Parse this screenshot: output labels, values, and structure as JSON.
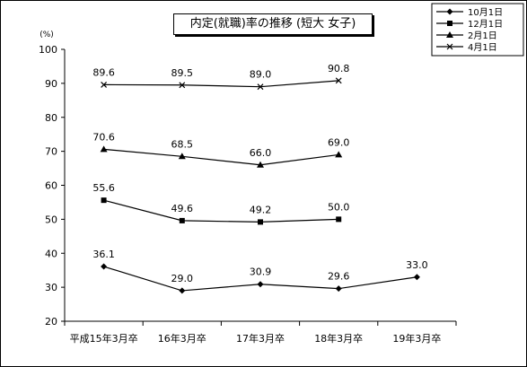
{
  "chart_data": {
    "type": "line",
    "title": "内定(就職)率の推移 (短大 女子)",
    "ylabel": "(%)",
    "ylim": [
      20,
      100
    ],
    "yticks": [
      20,
      30,
      40,
      50,
      60,
      70,
      80,
      90,
      100
    ],
    "grid": false,
    "legend_position": "top-right",
    "categories": [
      "平成15年3月卒",
      "16年3月卒",
      "17年3月卒",
      "18年3月卒",
      "19年3月卒"
    ],
    "series": [
      {
        "name": "10月1日",
        "marker": "diamond",
        "values": [
          36.1,
          29.0,
          30.9,
          29.6,
          33.0
        ],
        "labels": [
          "36.1",
          "29.0",
          "30.9",
          "29.6",
          "33.0"
        ]
      },
      {
        "name": "12月1日",
        "marker": "square",
        "values": [
          55.6,
          49.6,
          49.2,
          50.0,
          null
        ],
        "labels": [
          "55.6",
          "49.6",
          "49.2",
          "50.0",
          null
        ]
      },
      {
        "name": "2月1日",
        "marker": "triangle",
        "values": [
          70.6,
          68.5,
          66.0,
          69.0,
          null
        ],
        "labels": [
          "70.6",
          "68.5",
          "66.0",
          "69.0",
          null
        ]
      },
      {
        "name": "4月1日",
        "marker": "x",
        "values": [
          89.6,
          89.5,
          89.0,
          90.8,
          null
        ],
        "labels": [
          "89.6",
          "89.5",
          "89.0",
          "90.8",
          null
        ]
      }
    ]
  }
}
